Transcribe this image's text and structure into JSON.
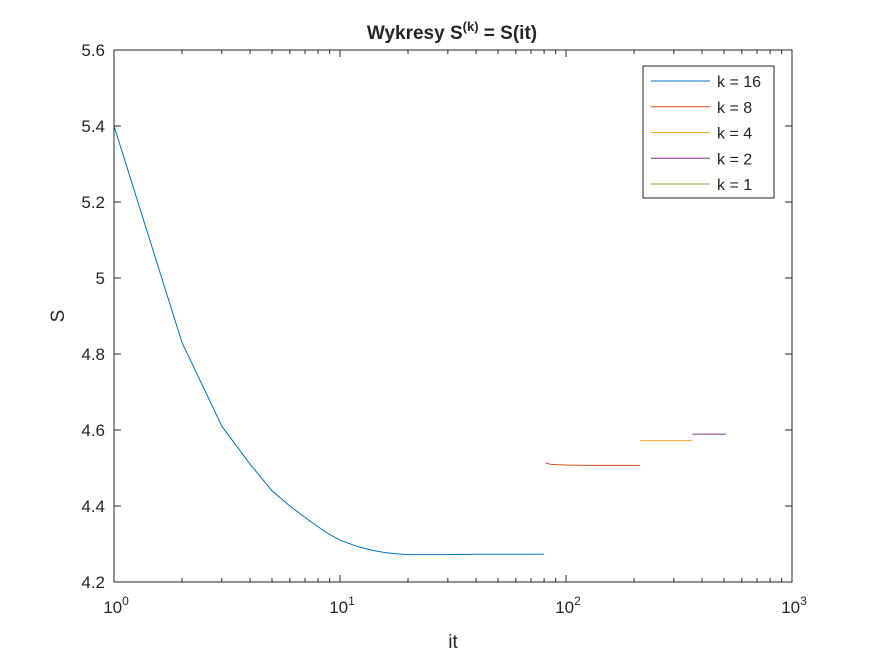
{
  "chart_data": {
    "type": "line",
    "title": {
      "prefix": "Wykresy S",
      "superscript": "(k)",
      "suffix": " = S(it)"
    },
    "xlabel": "it",
    "ylabel": "S",
    "xscale": "log",
    "xlim": [
      1,
      1000
    ],
    "ylim": [
      4.2,
      5.6
    ],
    "grid": false,
    "legend_position": "top-right",
    "y_ticks": [
      4.2,
      4.4,
      4.6,
      4.8,
      5.0,
      5.2,
      5.4,
      5.6
    ],
    "y_tick_labels": [
      "4.2",
      "4.4",
      "4.6",
      "4.8",
      "5",
      "5.2",
      "5.4",
      "5.6"
    ],
    "x_ticks": [
      {
        "value": 1,
        "base": "10",
        "exp": "0"
      },
      {
        "value": 10,
        "base": "10",
        "exp": "1"
      },
      {
        "value": 100,
        "base": "10",
        "exp": "2"
      },
      {
        "value": 1000,
        "base": "10",
        "exp": "3"
      }
    ],
    "series": [
      {
        "name": "k = 16",
        "color": "#0072BD",
        "points": [
          [
            1,
            5.4
          ],
          [
            2,
            4.83
          ],
          [
            3,
            4.61
          ],
          [
            4,
            4.51
          ],
          [
            5,
            4.44
          ],
          [
            6,
            4.4
          ],
          [
            7,
            4.37
          ],
          [
            8,
            4.345
          ],
          [
            9,
            4.325
          ],
          [
            10,
            4.31
          ],
          [
            12,
            4.293
          ],
          [
            14,
            4.283
          ],
          [
            16,
            4.277
          ],
          [
            18,
            4.274
          ],
          [
            20,
            4.272
          ],
          [
            25,
            4.272
          ],
          [
            30,
            4.272
          ],
          [
            40,
            4.273
          ],
          [
            50,
            4.273
          ],
          [
            60,
            4.273
          ],
          [
            70,
            4.273
          ],
          [
            80,
            4.273
          ]
        ]
      },
      {
        "name": "k = 8",
        "color": "#D95319",
        "points": [
          [
            81,
            4.514
          ],
          [
            85,
            4.51
          ],
          [
            90,
            4.509
          ],
          [
            100,
            4.508
          ],
          [
            120,
            4.507
          ],
          [
            150,
            4.507
          ],
          [
            180,
            4.507
          ],
          [
            212,
            4.507
          ]
        ]
      },
      {
        "name": "k = 4",
        "color": "#EDB120",
        "points": [
          [
            213,
            4.572
          ],
          [
            250,
            4.572
          ],
          [
            300,
            4.572
          ],
          [
            362,
            4.572
          ]
        ]
      },
      {
        "name": "k = 2",
        "color": "#7E2F8E",
        "points": [
          [
            363,
            4.589
          ],
          [
            400,
            4.589
          ],
          [
            450,
            4.589
          ],
          [
            510,
            4.589
          ]
        ]
      },
      {
        "name": "k = 1",
        "color": "#77AC30",
        "points": []
      }
    ]
  }
}
